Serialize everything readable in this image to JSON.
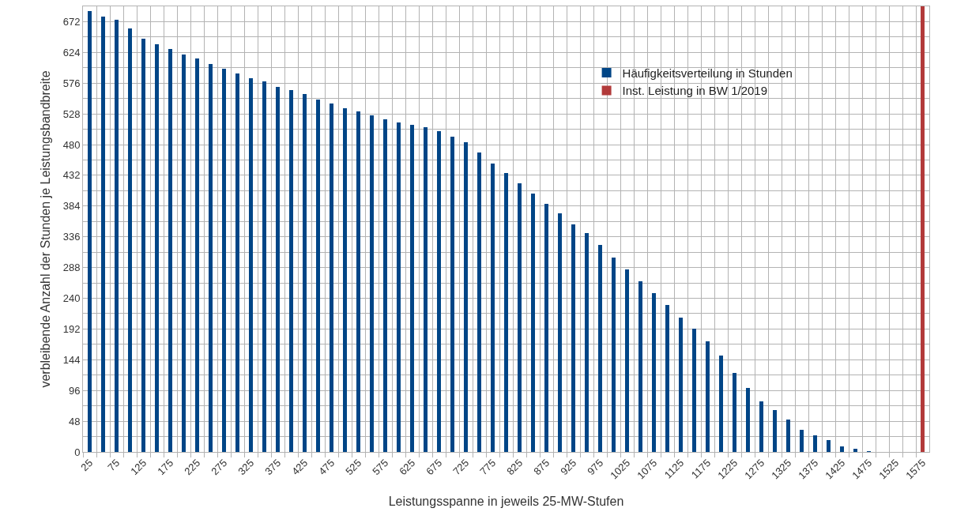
{
  "chart_data": {
    "type": "bar",
    "xlabel": "Leistungsspanne in jeweils 25-MW-Stufen",
    "ylabel": "verbleibende Anzahl der Stunden je Leistungsbandbreite",
    "categories": [
      "25",
      null,
      "75",
      null,
      "125",
      null,
      "175",
      null,
      "225",
      null,
      "275",
      null,
      "325",
      null,
      "375",
      null,
      "425",
      null,
      "475",
      null,
      "525",
      null,
      "575",
      null,
      "625",
      null,
      "675",
      null,
      "725",
      null,
      "775",
      null,
      "825",
      null,
      "875",
      null,
      "925",
      null,
      "975",
      null,
      "1025",
      null,
      "1075",
      null,
      "1125",
      null,
      "1175",
      null,
      "1225",
      null,
      "1275",
      null,
      "1325",
      null,
      "1375",
      null,
      "1425",
      null,
      "1475",
      null,
      "1525",
      null,
      "1575"
    ],
    "series": [
      {
        "name": "Häufigkeitsverteilung in Stunden",
        "color": "#004586",
        "values": [
          688,
          680,
          675,
          662,
          646,
          637,
          629,
          621,
          614,
          606,
          598,
          591,
          584,
          579,
          570,
          565,
          559,
          551,
          544,
          537,
          532,
          526,
          520,
          515,
          511,
          507,
          501,
          492,
          484,
          468,
          451,
          436,
          419,
          404,
          388,
          373,
          356,
          342,
          323,
          304,
          285,
          267,
          248,
          230,
          210,
          193,
          173,
          150,
          123,
          100,
          79,
          66,
          50,
          35,
          26,
          18,
          9,
          5,
          1,
          0,
          0,
          0,
          null
        ]
      },
      {
        "name": "Inst. Leistung in BW 1/2019",
        "color": "#b23a3a",
        "values": [
          null,
          null,
          null,
          null,
          null,
          null,
          null,
          null,
          null,
          null,
          null,
          null,
          null,
          null,
          null,
          null,
          null,
          null,
          null,
          null,
          null,
          null,
          null,
          null,
          null,
          null,
          null,
          null,
          null,
          null,
          null,
          null,
          null,
          null,
          null,
          null,
          null,
          null,
          null,
          null,
          null,
          null,
          null,
          null,
          null,
          null,
          null,
          null,
          null,
          null,
          null,
          null,
          null,
          null,
          null,
          null,
          null,
          null,
          null,
          null,
          null,
          null,
          696
        ]
      }
    ],
    "ylim": [
      0,
      696
    ],
    "yticks": [
      0,
      48,
      96,
      144,
      192,
      240,
      288,
      336,
      384,
      432,
      480,
      528,
      576,
      624,
      672
    ],
    "grid": true,
    "legend": "top right"
  }
}
